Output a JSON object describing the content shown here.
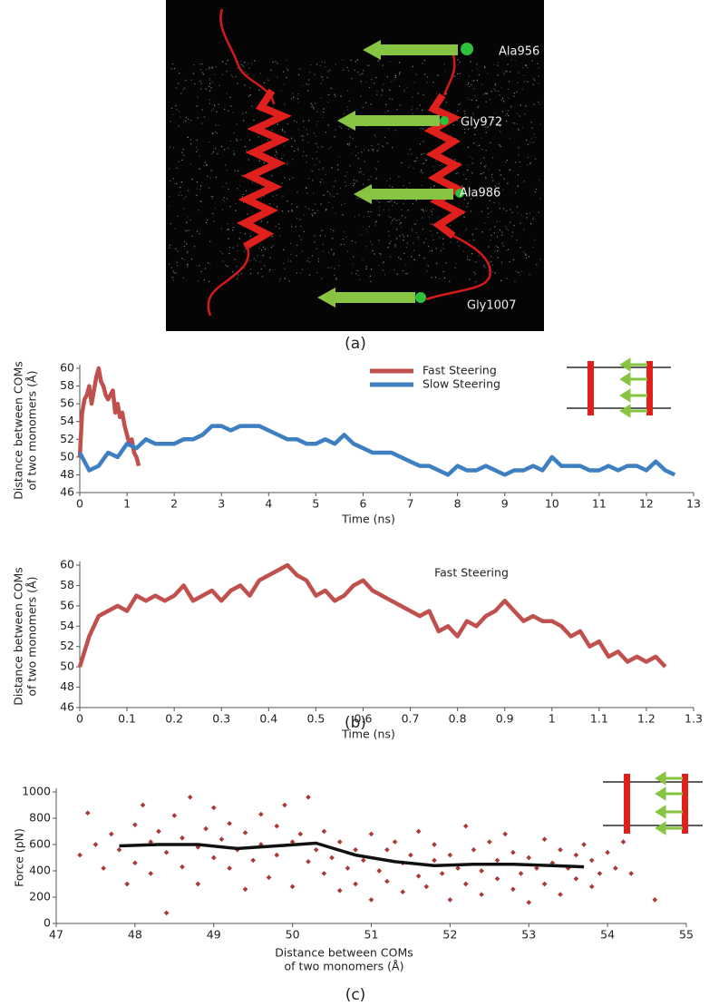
{
  "panel_a": {
    "labels": [
      "Ala956",
      "Gly972",
      "Ala986",
      "Gly1007"
    ],
    "caption": "(a)"
  },
  "panel_b": {
    "caption": "(b)"
  },
  "panel_c": {
    "caption": "(c)"
  },
  "chart_data": [
    {
      "type": "line",
      "xlabel": "Time (ns)",
      "ylabel": [
        "Distance between COMs",
        "of two monomers (Å)"
      ],
      "xlim": [
        0,
        13
      ],
      "xticks": [
        0,
        1,
        2,
        3,
        4,
        5,
        6,
        7,
        8,
        9,
        10,
        11,
        12,
        13
      ],
      "ylim": [
        46,
        60
      ],
      "yticks": [
        46,
        48,
        50,
        52,
        54,
        56,
        58,
        60
      ],
      "legend": "upper center",
      "series": [
        {
          "name": "Fast Steering",
          "color": "#c0504d",
          "x": [
            0,
            0.05,
            0.1,
            0.15,
            0.2,
            0.25,
            0.3,
            0.35,
            0.4,
            0.45,
            0.5,
            0.55,
            0.6,
            0.65,
            0.7,
            0.75,
            0.8,
            0.85,
            0.9,
            0.95,
            1.0,
            1.05,
            1.1,
            1.15,
            1.2,
            1.25
          ],
          "values": [
            50,
            55,
            56.5,
            57,
            58,
            56,
            57.5,
            59,
            60,
            58.5,
            58,
            57,
            56.5,
            57,
            57.5,
            55,
            56,
            54.5,
            55,
            53.5,
            52.5,
            51.5,
            52,
            50.5,
            50,
            49
          ]
        },
        {
          "name": "Slow Steering",
          "color": "#3d7fc1",
          "x": [
            0,
            0.2,
            0.4,
            0.6,
            0.8,
            1.0,
            1.2,
            1.4,
            1.6,
            1.8,
            2.0,
            2.2,
            2.4,
            2.6,
            2.8,
            3.0,
            3.2,
            3.4,
            3.6,
            3.8,
            4.0,
            4.2,
            4.4,
            4.6,
            4.8,
            5.0,
            5.2,
            5.4,
            5.6,
            5.8,
            6.0,
            6.2,
            6.4,
            6.6,
            6.8,
            7.0,
            7.2,
            7.4,
            7.6,
            7.8,
            8.0,
            8.2,
            8.4,
            8.6,
            8.8,
            9.0,
            9.2,
            9.4,
            9.6,
            9.8,
            10.0,
            10.2,
            10.4,
            10.6,
            10.8,
            11.0,
            11.2,
            11.4,
            11.6,
            11.8,
            12.0,
            12.2,
            12.4,
            12.6
          ],
          "values": [
            50.5,
            48.5,
            49,
            50.5,
            50,
            51.5,
            51,
            52,
            51.5,
            51.5,
            51.5,
            52,
            52,
            52.5,
            53.5,
            53.5,
            53,
            53.5,
            53.5,
            53.5,
            53,
            52.5,
            52,
            52,
            51.5,
            51.5,
            52,
            51.5,
            52.5,
            51.5,
            51,
            50.5,
            50.5,
            50.5,
            50,
            49.5,
            49,
            49,
            48.5,
            48,
            49,
            48.5,
            48.5,
            49,
            48.5,
            48,
            48.5,
            48.5,
            49,
            48.5,
            50,
            49,
            49,
            49,
            48.5,
            48.5,
            49,
            48.5,
            49,
            49,
            48.5,
            49.5,
            48.5,
            48
          ]
        }
      ]
    },
    {
      "type": "line",
      "xlabel": "Time (ns)",
      "ylabel": [
        "Distance between COMs",
        "of two monomers (Å)"
      ],
      "annotation": "Fast Steering",
      "xlim": [
        0,
        1.3
      ],
      "xticks": [
        0,
        0.1,
        0.2,
        0.3,
        0.4,
        0.5,
        0.6,
        0.7,
        0.8,
        0.9,
        1,
        1.1,
        1.2,
        1.3
      ],
      "ylim": [
        46,
        60
      ],
      "yticks": [
        46,
        48,
        50,
        52,
        54,
        56,
        58,
        60
      ],
      "series": [
        {
          "color": "#c0504d",
          "x": [
            0,
            0.02,
            0.04,
            0.06,
            0.08,
            0.1,
            0.12,
            0.14,
            0.16,
            0.18,
            0.2,
            0.22,
            0.24,
            0.26,
            0.28,
            0.3,
            0.32,
            0.34,
            0.36,
            0.38,
            0.4,
            0.42,
            0.44,
            0.46,
            0.48,
            0.5,
            0.52,
            0.54,
            0.56,
            0.58,
            0.6,
            0.62,
            0.64,
            0.66,
            0.68,
            0.7,
            0.72,
            0.74,
            0.76,
            0.78,
            0.8,
            0.82,
            0.84,
            0.86,
            0.88,
            0.9,
            0.92,
            0.94,
            0.96,
            0.98,
            1.0,
            1.02,
            1.04,
            1.06,
            1.08,
            1.1,
            1.12,
            1.14,
            1.16,
            1.18,
            1.2,
            1.22,
            1.24
          ],
          "values": [
            50,
            53,
            55,
            55.5,
            56,
            55.5,
            57,
            56.5,
            57,
            56.5,
            57,
            58,
            56.5,
            57,
            57.5,
            56.5,
            57.5,
            58,
            57,
            58.5,
            59,
            59.5,
            60,
            59,
            58.5,
            57,
            57.5,
            56.5,
            57,
            58,
            58.5,
            57.5,
            57,
            56.5,
            56,
            55.5,
            55,
            55.5,
            53.5,
            54,
            53,
            54.5,
            54,
            55,
            55.5,
            56.5,
            55.5,
            54.5,
            55,
            54.5,
            54.5,
            54,
            53,
            53.5,
            52,
            52.5,
            51,
            51.5,
            50.5,
            51,
            50.5,
            51,
            50
          ]
        }
      ]
    },
    {
      "type": "scatter",
      "xlabel": [
        "Distance between COMs",
        "of two monomers (Å)"
      ],
      "ylabel": "Force (pN)",
      "xlim": [
        47,
        55
      ],
      "xticks": [
        47,
        48,
        49,
        50,
        51,
        52,
        53,
        54,
        55
      ],
      "ylim": [
        0,
        1000
      ],
      "yticks": [
        0,
        200,
        400,
        600,
        800,
        1000
      ],
      "series": [
        {
          "color": "#a93a36",
          "style": "points",
          "x": [
            47.3,
            47.4,
            47.5,
            47.6,
            47.7,
            47.8,
            47.9,
            48.0,
            48.0,
            48.1,
            48.2,
            48.2,
            48.3,
            48.4,
            48.4,
            48.5,
            48.6,
            48.6,
            48.7,
            48.8,
            48.8,
            48.9,
            49.0,
            49.0,
            49.1,
            49.2,
            49.2,
            49.3,
            49.4,
            49.4,
            49.5,
            49.6,
            49.6,
            49.7,
            49.8,
            49.8,
            49.9,
            50.0,
            50.0,
            50.1,
            50.2,
            50.2,
            50.3,
            50.4,
            50.4,
            50.5,
            50.6,
            50.6,
            50.7,
            50.8,
            50.8,
            50.9,
            51.0,
            51.0,
            51.1,
            51.2,
            51.2,
            51.3,
            51.4,
            51.4,
            51.5,
            51.6,
            51.6,
            51.7,
            51.8,
            51.8,
            51.9,
            52.0,
            52.0,
            52.1,
            52.2,
            52.2,
            52.3,
            52.4,
            52.4,
            52.5,
            52.6,
            52.6,
            52.7,
            52.8,
            52.8,
            52.9,
            53.0,
            53.0,
            53.1,
            53.2,
            53.2,
            53.3,
            53.4,
            53.4,
            53.5,
            53.6,
            53.6,
            53.7,
            53.8,
            53.8,
            53.9,
            54.0,
            54.1,
            54.2,
            54.3,
            54.6
          ],
          "values": [
            520,
            840,
            600,
            420,
            680,
            560,
            300,
            750,
            460,
            900,
            620,
            380,
            700,
            540,
            80,
            820,
            650,
            430,
            960,
            580,
            300,
            720,
            500,
            880,
            640,
            420,
            760,
            560,
            260,
            690,
            480,
            830,
            600,
            350,
            740,
            520,
            900,
            620,
            280,
            680,
            470,
            960,
            560,
            380,
            700,
            500,
            250,
            620,
            420,
            560,
            300,
            480,
            680,
            180,
            400,
            560,
            320,
            620,
            460,
            240,
            520,
            360,
            700,
            280,
            480,
            600,
            380,
            180,
            520,
            420,
            740,
            300,
            560,
            400,
            220,
            620,
            340,
            480,
            680,
            260,
            540,
            380,
            160,
            500,
            420,
            640,
            300,
            460,
            560,
            220,
            420,
            520,
            340,
            600,
            280,
            480,
            380,
            540,
            420,
            620,
            380,
            180
          ]
        },
        {
          "color": "#111111",
          "style": "line",
          "x": [
            47.8,
            48.3,
            48.8,
            49.3,
            49.8,
            50.3,
            50.8,
            51.3,
            51.8,
            52.3,
            52.8,
            53.3,
            53.7
          ],
          "values": [
            590,
            600,
            600,
            570,
            590,
            610,
            520,
            470,
            440,
            450,
            450,
            440,
            430
          ]
        }
      ]
    }
  ]
}
